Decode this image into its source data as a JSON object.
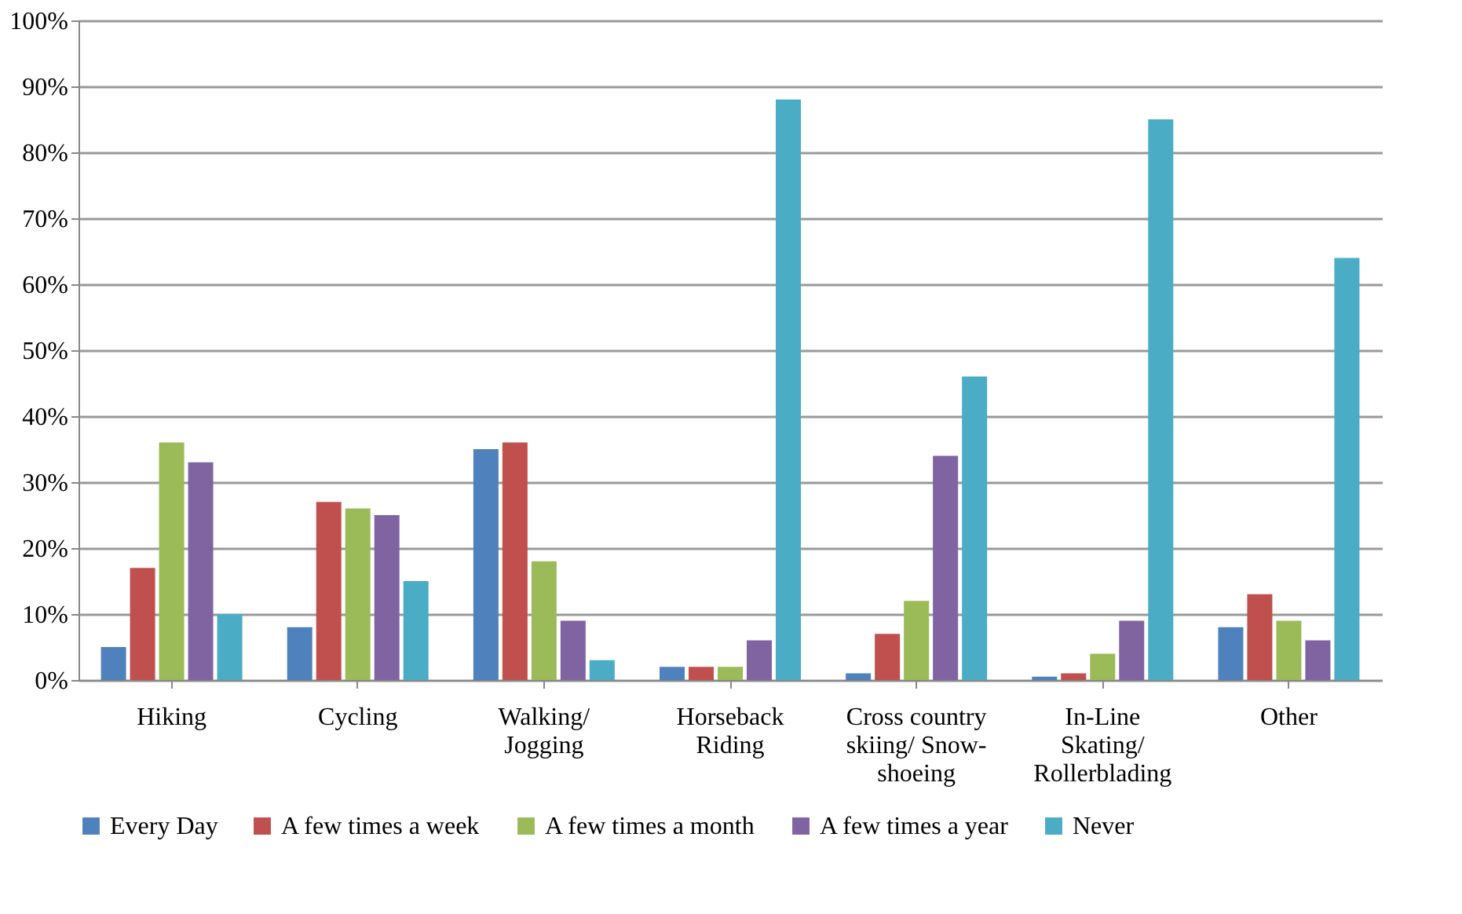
{
  "chart_data": {
    "type": "bar",
    "categories": [
      "Hiking",
      "Cycling",
      "Walking/\nJogging",
      "Horseback\nRiding",
      "Cross country\nskiing/ Snow-\nshoeing",
      "In-Line\nSkating/\nRollerblading",
      "Other"
    ],
    "series": [
      {
        "name": "Every Day",
        "color": "#4f81bd",
        "values": [
          5,
          8,
          35,
          2,
          1,
          0.5,
          8
        ]
      },
      {
        "name": "A few times a week",
        "color": "#c0504d",
        "values": [
          17,
          27,
          36,
          2,
          7,
          1,
          13
        ]
      },
      {
        "name": "A few times a month",
        "color": "#9bbb59",
        "values": [
          36,
          26,
          18,
          2,
          12,
          4,
          9
        ]
      },
      {
        "name": "A few times a year",
        "color": "#8064a2",
        "values": [
          33,
          25,
          9,
          6,
          34,
          9,
          6
        ]
      },
      {
        "name": "Never",
        "color": "#4bacc6",
        "values": [
          10,
          15,
          3,
          88,
          46,
          85,
          64
        ]
      }
    ],
    "ylim": [
      0,
      100
    ],
    "yticks": [
      {
        "value": 0,
        "label": "0%"
      },
      {
        "value": 10,
        "label": "10%"
      },
      {
        "value": 20,
        "label": "20%"
      },
      {
        "value": 30,
        "label": "30%"
      },
      {
        "value": 40,
        "label": "40%"
      },
      {
        "value": 50,
        "label": "50%"
      },
      {
        "value": 60,
        "label": "60%"
      },
      {
        "value": 70,
        "label": "70%"
      },
      {
        "value": 80,
        "label": "80%"
      },
      {
        "value": 90,
        "label": "90%"
      },
      {
        "value": 100,
        "label": "100%"
      }
    ],
    "grid": "y",
    "legend": "bottom"
  }
}
